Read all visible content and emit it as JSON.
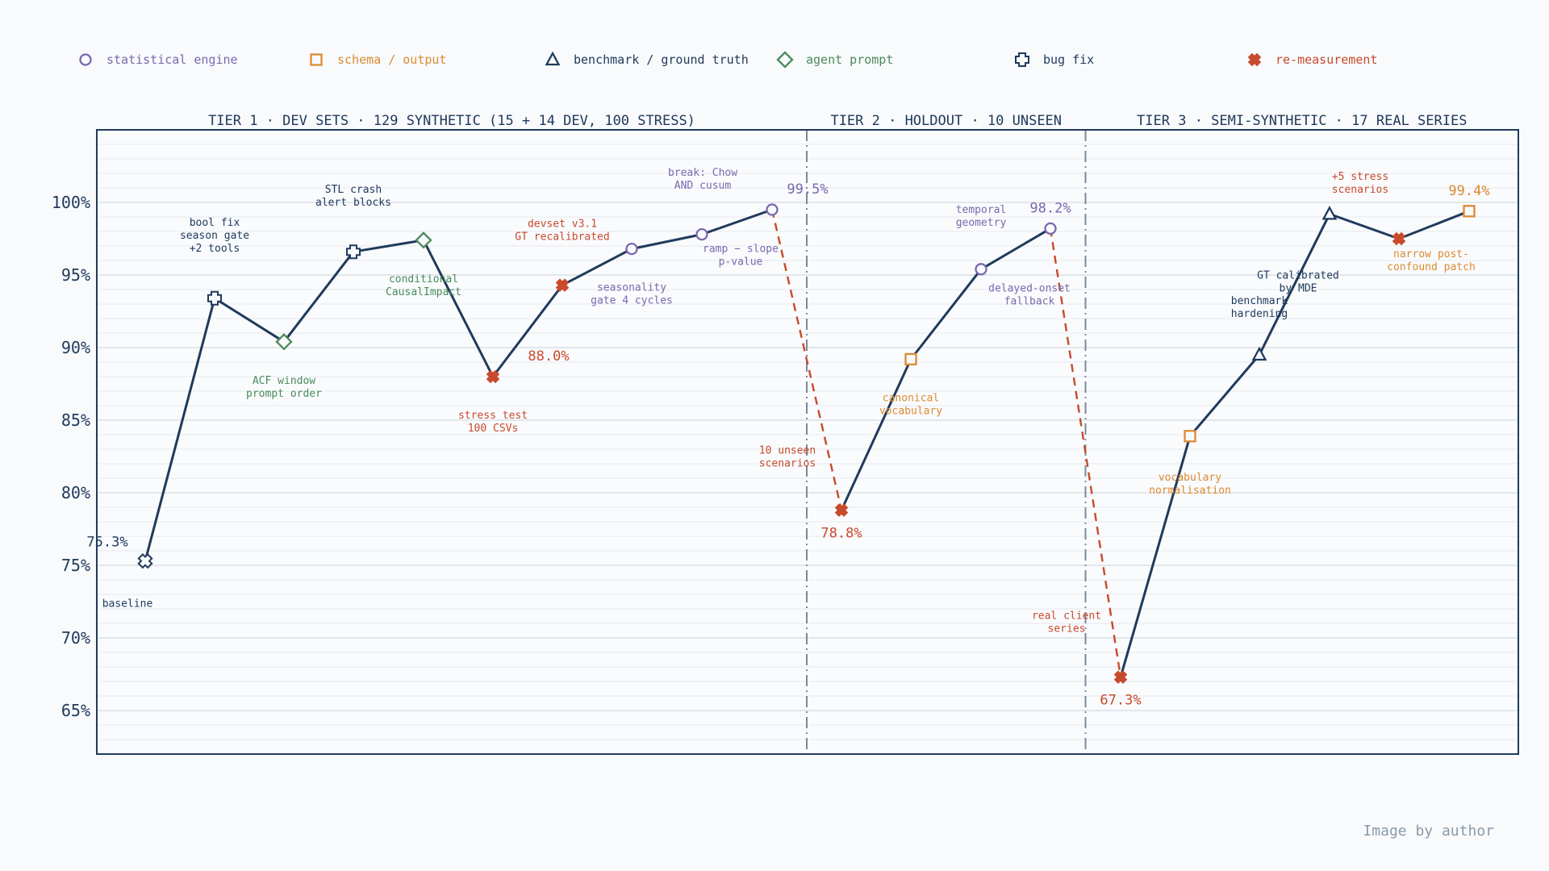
{
  "credit": "Image by author",
  "colors": {
    "statistical_engine": "#7b68ae",
    "schema_output": "#dc8a32",
    "benchmark_ground_truth": "#203a5c",
    "agent_prompt": "#4a8a5c",
    "bug_fix": "#203a5c",
    "re_measurement": "#c84a2c",
    "main_line": "#203a5c",
    "dashed_line": "#c84a2c",
    "frame": "#203a5c",
    "divider": "#7a8a9a",
    "grid_major": "#d4dbe3",
    "grid_minor": "#e6eaef",
    "text": "#203a5c",
    "background": "#f8fafc"
  },
  "chart_data": {
    "type": "line",
    "ylim": [
      62,
      105
    ],
    "yticks": [
      65,
      70,
      75,
      80,
      85,
      90,
      95,
      100
    ],
    "ytick_labels": [
      "65%",
      "70%",
      "75%",
      "80%",
      "85%",
      "90%",
      "95%",
      "100%"
    ],
    "grid": true,
    "legend_position": "top",
    "legend": [
      {
        "key": "statistical_engine",
        "label": "statistical engine",
        "marker": "circle"
      },
      {
        "key": "schema_output",
        "label": "schema / output",
        "marker": "square"
      },
      {
        "key": "benchmark_ground_truth",
        "label": "benchmark / ground truth",
        "marker": "triangle"
      },
      {
        "key": "agent_prompt",
        "label": "agent prompt",
        "marker": "diamond"
      },
      {
        "key": "bug_fix",
        "label": "bug fix",
        "marker": "plus"
      },
      {
        "key": "re_measurement",
        "label": "re-measurement",
        "marker": "cross"
      }
    ],
    "tiers": [
      {
        "label": "TIER 1 · DEV SETS · 129 SYNTHETIC (15 + 14 DEV, 100 STRESS)"
      },
      {
        "label": "TIER 2 · HOLDOUT · 10 UNSEEN"
      },
      {
        "label": "TIER 3 · SEMI-SYNTHETIC · 17 REAL SERIES"
      }
    ],
    "points": [
      {
        "step": 0,
        "value": 75.3,
        "category": "bug_fix",
        "annotation": "baseline",
        "value_label": "75.3%"
      },
      {
        "step": 1,
        "value": 93.4,
        "category": "bug_fix",
        "annotation": "bool fix\nseason gate\n+2 tools"
      },
      {
        "step": 2,
        "value": 90.4,
        "category": "agent_prompt",
        "annotation": "ACF window\nprompt order"
      },
      {
        "step": 3,
        "value": 96.6,
        "category": "bug_fix",
        "annotation": "STL crash\nalert blocks"
      },
      {
        "step": 4,
        "value": 97.4,
        "category": "agent_prompt",
        "annotation": "conditional\nCausalImpact"
      },
      {
        "step": 5,
        "value": 88.0,
        "category": "re_measurement",
        "annotation": "stress test\n100 CSVs",
        "value_label": "88.0%"
      },
      {
        "step": 6,
        "value": 94.3,
        "category": "re_measurement",
        "annotation": "devset v3.1\nGT recalibrated"
      },
      {
        "step": 7,
        "value": 96.8,
        "category": "statistical_engine",
        "annotation": "seasonality\ngate 4 cycles"
      },
      {
        "step": 8,
        "value": 97.8,
        "category": "statistical_engine",
        "annotation": "ramp − slope\np-value"
      },
      {
        "step": 9,
        "value": 99.5,
        "category": "statistical_engine",
        "annotation": "break: Chow\nAND cusum",
        "value_label": "99.5%"
      },
      {
        "step": 10,
        "value": 78.8,
        "category": "re_measurement",
        "annotation": "10 unseen\nscenarios",
        "value_label": "78.8%"
      },
      {
        "step": 11,
        "value": 89.2,
        "category": "schema_output",
        "annotation": "canonical\nvocabulary"
      },
      {
        "step": 12,
        "value": 95.4,
        "category": "statistical_engine",
        "annotation": "temporal\ngeometry"
      },
      {
        "step": 13,
        "value": 98.2,
        "category": "statistical_engine",
        "annotation": "delayed-onset\nfallback",
        "value_label": "98.2%"
      },
      {
        "step": 14,
        "value": 67.3,
        "category": "re_measurement",
        "annotation": "real client\nseries",
        "value_label": "67.3%"
      },
      {
        "step": 15,
        "value": 83.9,
        "category": "schema_output",
        "annotation": "vocabulary\nnormalisation"
      },
      {
        "step": 16,
        "value": 89.5,
        "category": "benchmark_ground_truth",
        "annotation": "benchmark\nhardening"
      },
      {
        "step": 17,
        "value": 99.2,
        "category": "benchmark_ground_truth",
        "annotation": "GT calibrated\nby MDE"
      },
      {
        "step": 18,
        "value": 97.5,
        "category": "re_measurement",
        "annotation": "+5 stress\nscenarios"
      },
      {
        "step": 19,
        "value": 99.4,
        "category": "schema_output",
        "annotation": "narrow post-\nconfound patch",
        "value_label": "99.4%"
      }
    ],
    "segments": [
      {
        "from": 0,
        "to": 9,
        "style": "solid"
      },
      {
        "from": 9,
        "to": 10,
        "style": "dashed"
      },
      {
        "from": 10,
        "to": 13,
        "style": "solid"
      },
      {
        "from": 13,
        "to": 14,
        "style": "dashed"
      },
      {
        "from": 14,
        "to": 19,
        "style": "solid"
      }
    ],
    "tier_boundaries_after_step": [
      9.5,
      13.5
    ]
  }
}
